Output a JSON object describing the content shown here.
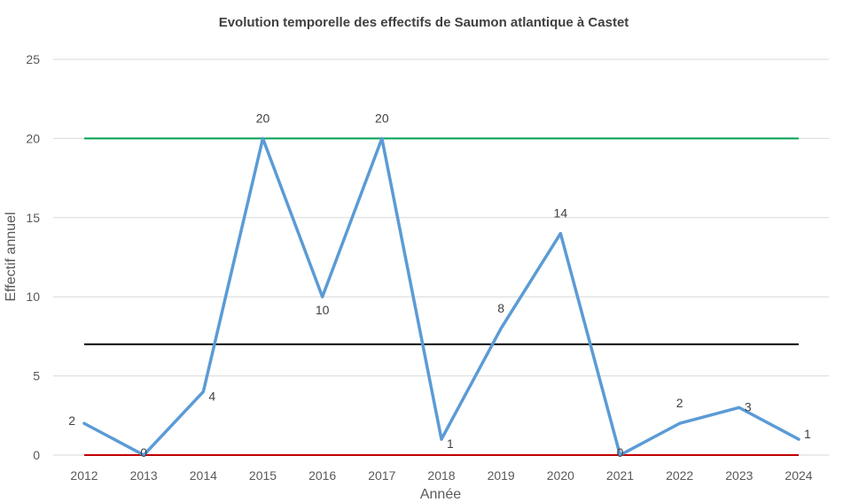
{
  "chart_data": {
    "type": "line",
    "title": "Evolution temporelle des effectifs de Saumon atlantique à Castet",
    "xlabel": "Année",
    "ylabel": "Effectif annuel",
    "categories": [
      "2012",
      "2013",
      "2014",
      "2015",
      "2016",
      "2017",
      "2018",
      "2019",
      "2020",
      "2021",
      "2022",
      "2023",
      "2024"
    ],
    "series": [
      {
        "values": [
          2,
          0,
          4,
          20,
          10,
          20,
          1,
          8,
          14,
          0,
          2,
          3,
          1
        ],
        "labels": [
          "2",
          "0",
          "4",
          "20",
          "10",
          "20",
          "1",
          "8",
          "14",
          "0",
          "2",
          "3",
          "1"
        ],
        "color": "#5b9bd5"
      }
    ],
    "reference_lines": [
      {
        "value": 20,
        "color": "#00a050"
      },
      {
        "value": 7,
        "color": "#000000"
      },
      {
        "value": 0,
        "color": "#c00000"
      }
    ],
    "ylim": [
      0,
      25
    ],
    "yticks": [
      "0",
      "5",
      "10",
      "15",
      "20",
      "25"
    ],
    "grid": true,
    "legend": "none"
  }
}
